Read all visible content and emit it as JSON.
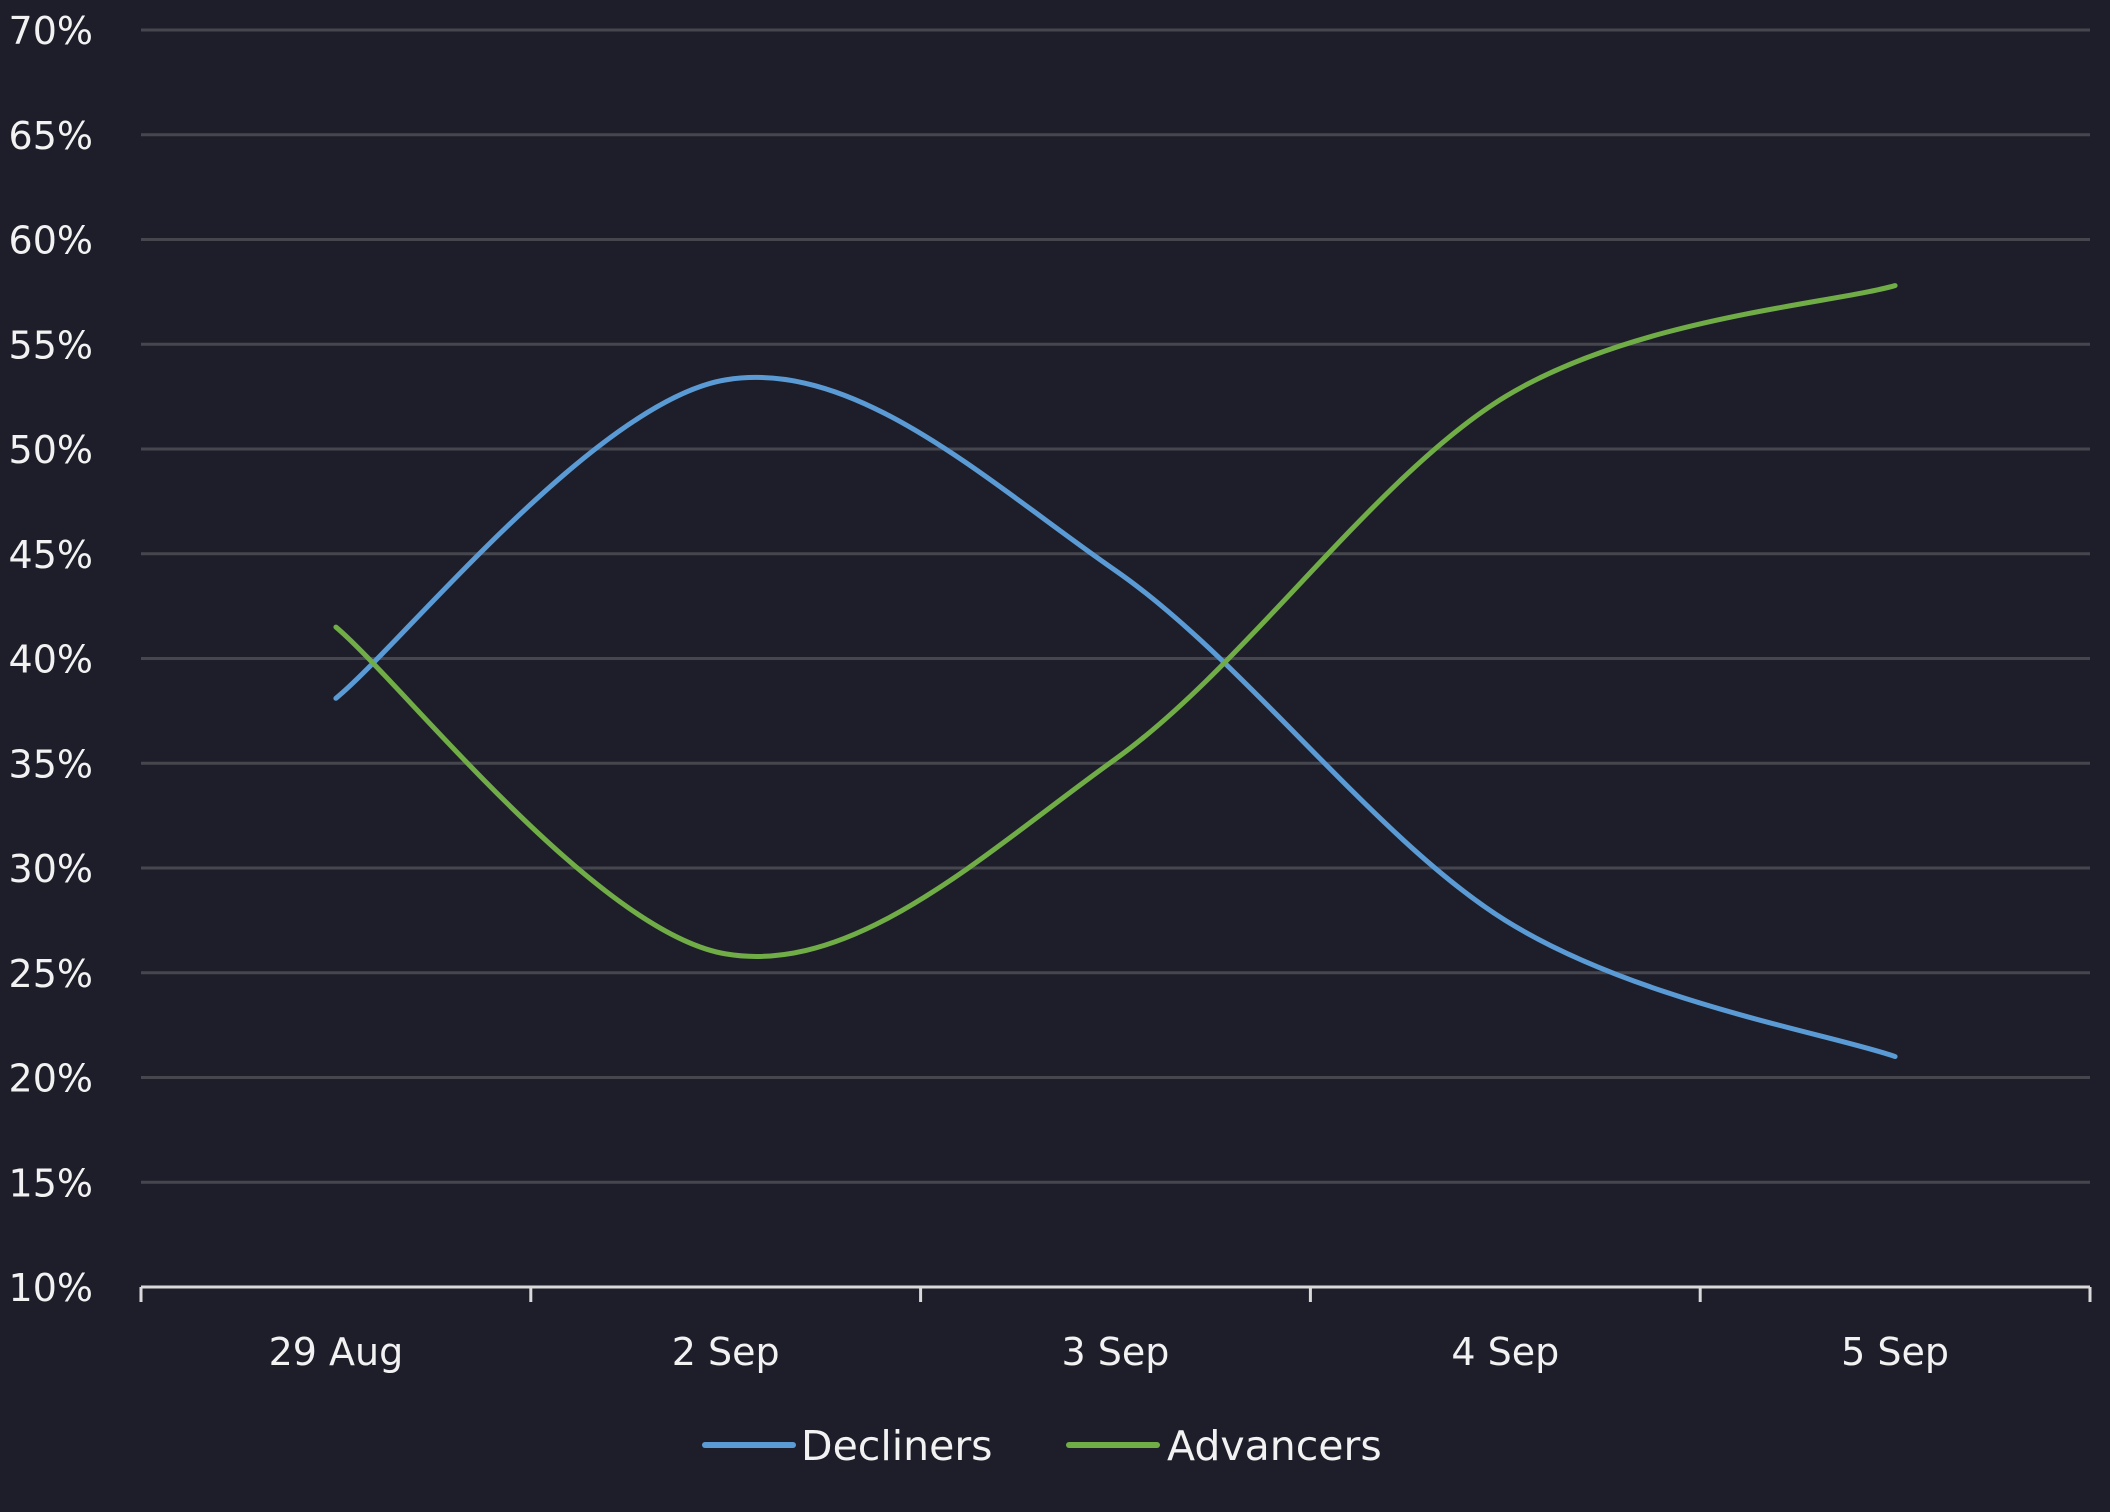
{
  "chart_data": {
    "type": "line",
    "title": "",
    "xlabel": "",
    "ylabel": "",
    "categories": [
      "29 Aug",
      "2 Sep",
      "3 Sep",
      "4 Sep",
      "5 Sep"
    ],
    "y_ticks": [
      "10%",
      "15%",
      "20%",
      "25%",
      "30%",
      "35%",
      "40%",
      "45%",
      "50%",
      "55%",
      "60%",
      "65%",
      "70%"
    ],
    "ylim": [
      10,
      70
    ],
    "grid": true,
    "legend_position": "bottom-center",
    "background": "#1e1e2a",
    "series": [
      {
        "name": "Decliners",
        "color": "#5b9bd5",
        "values": [
          38.1,
          53.3,
          44.2,
          27.5,
          21.0
        ]
      },
      {
        "name": "Advancers",
        "color": "#70ad47",
        "values": [
          41.5,
          25.9,
          35.2,
          52.5,
          57.8
        ]
      }
    ]
  }
}
